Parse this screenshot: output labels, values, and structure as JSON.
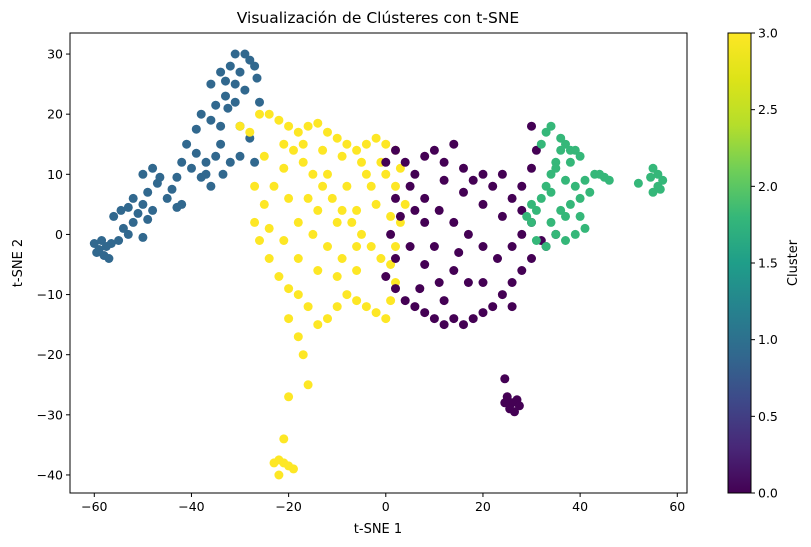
{
  "chart_data": {
    "type": "scatter",
    "title": "Visualización de Clústeres con t-SNE",
    "xlabel": "t-SNE 1",
    "ylabel": "t-SNE 2",
    "xlim": [
      -65,
      62
    ],
    "ylim": [
      -43,
      33.5
    ],
    "xticks": [
      -60,
      -40,
      -20,
      0,
      20,
      40,
      60
    ],
    "yticks": [
      -40,
      -30,
      -20,
      -10,
      0,
      10,
      20,
      30
    ],
    "grid": false,
    "colorbar": {
      "label": "Cluster",
      "colormap": "viridis",
      "range": [
        0.0,
        3.0
      ],
      "ticks": [
        "0.0",
        "0.5",
        "1.0",
        "1.5",
        "2.0",
        "2.5",
        "3.0"
      ]
    },
    "colors": {
      "cluster_0": "#440154",
      "cluster_1": "#31688e",
      "cluster_2": "#35b779",
      "cluster_3": "#fde725"
    },
    "series": [
      {
        "cluster": 1,
        "points": [
          [
            -60,
            -1.5
          ],
          [
            -59,
            -2.5
          ],
          [
            -58,
            -3.5
          ],
          [
            -57.5,
            -2
          ],
          [
            -57,
            -4
          ],
          [
            -56.5,
            -1.5
          ],
          [
            -59.5,
            -3
          ],
          [
            -58.5,
            -1
          ],
          [
            -55,
            -1
          ],
          [
            -54,
            1
          ],
          [
            -52,
            2
          ],
          [
            -51,
            3.5
          ],
          [
            -50,
            -0.5
          ],
          [
            -49,
            2.5
          ],
          [
            -48,
            4
          ],
          [
            -50,
            5
          ],
          [
            -52,
            6
          ],
          [
            -53,
            4.5
          ],
          [
            -54.5,
            4
          ],
          [
            -49,
            7
          ],
          [
            -47,
            8.5
          ],
          [
            -50,
            10
          ],
          [
            -48,
            11
          ],
          [
            -46.5,
            9.5
          ],
          [
            -43,
            4.5
          ],
          [
            -42,
            5
          ],
          [
            -44,
            7.5
          ],
          [
            -43,
            9.5
          ],
          [
            -42,
            12
          ],
          [
            -40,
            11
          ],
          [
            -38,
            9.5
          ],
          [
            -36,
            8
          ],
          [
            -37,
            12
          ],
          [
            -41,
            15
          ],
          [
            -39,
            17.5
          ],
          [
            -38,
            20
          ],
          [
            -36,
            19
          ],
          [
            -35,
            21.5
          ],
          [
            -34,
            18
          ],
          [
            -33,
            23
          ],
          [
            -36,
            25
          ],
          [
            -34,
            27
          ],
          [
            -32,
            28
          ],
          [
            -31,
            30
          ],
          [
            -29,
            30
          ],
          [
            -28,
            29
          ],
          [
            -27,
            28
          ],
          [
            -30,
            27
          ],
          [
            -33,
            25.5
          ],
          [
            -29,
            24
          ],
          [
            -31,
            22
          ],
          [
            -34,
            15
          ],
          [
            -32,
            12
          ],
          [
            -33.5,
            10
          ],
          [
            -30,
            13
          ],
          [
            -27,
            12
          ],
          [
            -26,
            22
          ],
          [
            -28,
            16
          ],
          [
            -30,
            18
          ],
          [
            -31,
            25
          ],
          [
            -26.5,
            26
          ],
          [
            -32.5,
            21
          ],
          [
            -35,
            13
          ],
          [
            -37,
            10
          ],
          [
            -39,
            13.5
          ],
          [
            -45,
            6
          ],
          [
            -56,
            3
          ],
          [
            -53,
            0
          ]
        ]
      },
      {
        "cluster": 3,
        "points": [
          [
            -30,
            18
          ],
          [
            -28,
            17
          ],
          [
            -26,
            20
          ],
          [
            -24,
            20
          ],
          [
            -22,
            19
          ],
          [
            -20,
            18
          ],
          [
            -18,
            17
          ],
          [
            -16,
            18
          ],
          [
            -14,
            18.5
          ],
          [
            -12,
            17
          ],
          [
            -10,
            16
          ],
          [
            -8,
            15
          ],
          [
            -6,
            14
          ],
          [
            -4,
            15
          ],
          [
            -2,
            16
          ],
          [
            0,
            15
          ],
          [
            2,
            14
          ],
          [
            3,
            11
          ],
          [
            2,
            8
          ],
          [
            4,
            5
          ],
          [
            3,
            2
          ],
          [
            2,
            -2
          ],
          [
            1,
            -5
          ],
          [
            2,
            -8
          ],
          [
            1,
            -11
          ],
          [
            0,
            -14
          ],
          [
            -2,
            -13
          ],
          [
            -4,
            -12
          ],
          [
            -6,
            -11
          ],
          [
            -8,
            -10
          ],
          [
            -10,
            -12
          ],
          [
            -12,
            -14
          ],
          [
            -14,
            -15
          ],
          [
            -16,
            -12
          ],
          [
            -18,
            -10
          ],
          [
            -20,
            -9
          ],
          [
            -22,
            -7
          ],
          [
            -24,
            -4
          ],
          [
            -26,
            -1
          ],
          [
            -27,
            2
          ],
          [
            -25,
            5
          ],
          [
            -23,
            8
          ],
          [
            -21,
            11
          ],
          [
            -19,
            14
          ],
          [
            -17,
            12
          ],
          [
            -15,
            10
          ],
          [
            -13,
            8
          ],
          [
            -11,
            6
          ],
          [
            -9,
            4
          ],
          [
            -7,
            2
          ],
          [
            -5,
            0
          ],
          [
            -3,
            -2
          ],
          [
            -1,
            -4
          ],
          [
            -6,
            -6
          ],
          [
            -9,
            -4
          ],
          [
            -12,
            -2
          ],
          [
            -15,
            0
          ],
          [
            -18,
            2
          ],
          [
            -21,
            -1
          ],
          [
            -24,
            1
          ],
          [
            -20,
            6
          ],
          [
            -16,
            6
          ],
          [
            -12,
            10
          ],
          [
            -8,
            8
          ],
          [
            -4,
            10
          ],
          [
            0,
            10
          ],
          [
            -2,
            5
          ],
          [
            -6,
            4
          ],
          [
            -10,
            2
          ],
          [
            -14,
            4
          ],
          [
            -18,
            -4
          ],
          [
            -14,
            -6
          ],
          [
            -10,
            -7
          ],
          [
            -6,
            -2
          ],
          [
            -3,
            8
          ],
          [
            1,
            3
          ],
          [
            -1,
            12
          ],
          [
            -5,
            12
          ],
          [
            -9,
            13
          ],
          [
            -13,
            14
          ],
          [
            -17,
            15
          ],
          [
            -21,
            15
          ],
          [
            -25,
            13
          ],
          [
            -27,
            8
          ],
          [
            -20,
            -14
          ],
          [
            -18,
            -17
          ],
          [
            -17,
            -20
          ],
          [
            -16,
            -25
          ],
          [
            -20,
            -27
          ],
          [
            -21,
            -34
          ],
          [
            -22,
            -37.5
          ],
          [
            -21,
            -38
          ],
          [
            -20,
            -38.5
          ],
          [
            -19,
            -39
          ],
          [
            -22,
            -40
          ],
          [
            -23,
            -38
          ]
        ]
      },
      {
        "cluster": 0,
        "points": [
          [
            0,
            12
          ],
          [
            2,
            14
          ],
          [
            4,
            12
          ],
          [
            6,
            10
          ],
          [
            8,
            13
          ],
          [
            10,
            14
          ],
          [
            12,
            12
          ],
          [
            14,
            15
          ],
          [
            16,
            11
          ],
          [
            18,
            9
          ],
          [
            20,
            10
          ],
          [
            22,
            8
          ],
          [
            24,
            10
          ],
          [
            26,
            6
          ],
          [
            28,
            4
          ],
          [
            30,
            2
          ],
          [
            32,
            -1
          ],
          [
            30,
            -4
          ],
          [
            28,
            -6
          ],
          [
            26,
            -8
          ],
          [
            24,
            -10
          ],
          [
            22,
            -12
          ],
          [
            20,
            -13
          ],
          [
            18,
            -14
          ],
          [
            16,
            -15
          ],
          [
            14,
            -14
          ],
          [
            12,
            -15
          ],
          [
            10,
            -14
          ],
          [
            8,
            -13
          ],
          [
            6,
            -12
          ],
          [
            4,
            -11
          ],
          [
            2,
            -9
          ],
          [
            0,
            -7
          ],
          [
            2,
            -4
          ],
          [
            1,
            0
          ],
          [
            3,
            3
          ],
          [
            2,
            6
          ],
          [
            5,
            8
          ],
          [
            8,
            6
          ],
          [
            11,
            4
          ],
          [
            14,
            2
          ],
          [
            17,
            0
          ],
          [
            20,
            -2
          ],
          [
            23,
            -4
          ],
          [
            26,
            -2
          ],
          [
            28,
            0
          ],
          [
            24,
            3
          ],
          [
            20,
            5
          ],
          [
            16,
            7
          ],
          [
            12,
            9
          ],
          [
            8,
            2
          ],
          [
            5,
            -2
          ],
          [
            8,
            -5
          ],
          [
            11,
            -8
          ],
          [
            14,
            -6
          ],
          [
            17,
            -8
          ],
          [
            20,
            -8
          ],
          [
            15,
            -3
          ],
          [
            10,
            -2
          ],
          [
            6,
            4
          ],
          [
            12,
            -11
          ],
          [
            7,
            -9
          ],
          [
            28,
            8
          ],
          [
            30,
            11
          ],
          [
            31,
            14
          ],
          [
            30,
            18
          ],
          [
            26,
            -12
          ],
          [
            25,
            -27
          ],
          [
            26,
            -28
          ],
          [
            27,
            -27.5
          ],
          [
            25.5,
            -29
          ],
          [
            26.5,
            -29.5
          ],
          [
            24.5,
            -28
          ],
          [
            27.5,
            -28.5
          ],
          [
            24.5,
            -24
          ],
          [
            33,
            -2
          ],
          [
            35,
            0
          ]
        ]
      },
      {
        "cluster": 2,
        "points": [
          [
            30,
            2
          ],
          [
            31,
            4
          ],
          [
            32,
            6
          ],
          [
            33,
            8
          ],
          [
            34,
            10
          ],
          [
            35,
            12
          ],
          [
            36,
            14
          ],
          [
            37,
            15
          ],
          [
            38,
            14
          ],
          [
            36,
            16
          ],
          [
            34,
            18
          ],
          [
            33,
            17
          ],
          [
            32,
            15
          ],
          [
            35,
            11
          ],
          [
            37,
            9
          ],
          [
            39,
            8
          ],
          [
            40,
            6
          ],
          [
            40,
            3
          ],
          [
            41,
            1
          ],
          [
            39,
            0
          ],
          [
            37,
            -1
          ],
          [
            35,
            0
          ],
          [
            34,
            2
          ],
          [
            36,
            4
          ],
          [
            38,
            5
          ],
          [
            41,
            9
          ],
          [
            43,
            10
          ],
          [
            44,
            10
          ],
          [
            45,
            9.5
          ],
          [
            46,
            9
          ],
          [
            42,
            7
          ],
          [
            38,
            12
          ],
          [
            39,
            14
          ],
          [
            40,
            13
          ],
          [
            52,
            8.5
          ],
          [
            55,
            7
          ],
          [
            56,
            8
          ],
          [
            57,
            9
          ],
          [
            56,
            10
          ],
          [
            55,
            11
          ],
          [
            54.5,
            9.5
          ],
          [
            56.5,
            7.5
          ],
          [
            29,
            3
          ],
          [
            31,
            -1
          ],
          [
            33,
            -2
          ],
          [
            30,
            5
          ],
          [
            37,
            3
          ],
          [
            34,
            7
          ]
        ]
      }
    ]
  }
}
